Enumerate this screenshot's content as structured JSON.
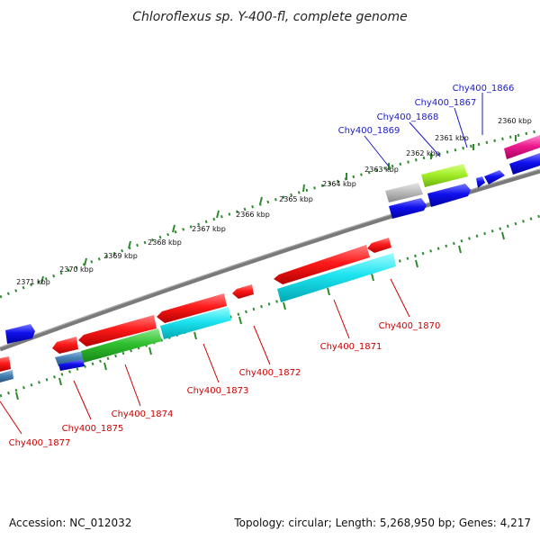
{
  "title": "Chloroflexus sp. Y-400-fl, complete genome",
  "accession": "Accession: NC_012032",
  "topology": "Topology: circular; Length: 5,268,950 bp; Genes: 4,217",
  "scale_labels": [
    "2361 kbp",
    "2362 kbp",
    "2363 kbp",
    "2364 kbp",
    "2365 kbp",
    "2366 kbp",
    "2367 kbp",
    "2368 kbp",
    "2369 kbp",
    "2370 kbp",
    "2371 kbp",
    "2360 kbp"
  ],
  "genes_forward": [
    "Chy400_1866",
    "Chy400_1867",
    "Chy400_1868",
    "Chy400_1869"
  ],
  "genes_reverse": [
    "Chy400_1870",
    "Chy400_1871",
    "Chy400_1872",
    "Chy400_1873",
    "Chy400_1874",
    "Chy400_1875",
    "Chy400_1877"
  ],
  "colors": {
    "backbone": "#777777",
    "dots": "#2e8b2e",
    "forward_label": "#1a1acc",
    "reverse_label": "#cc0000"
  }
}
